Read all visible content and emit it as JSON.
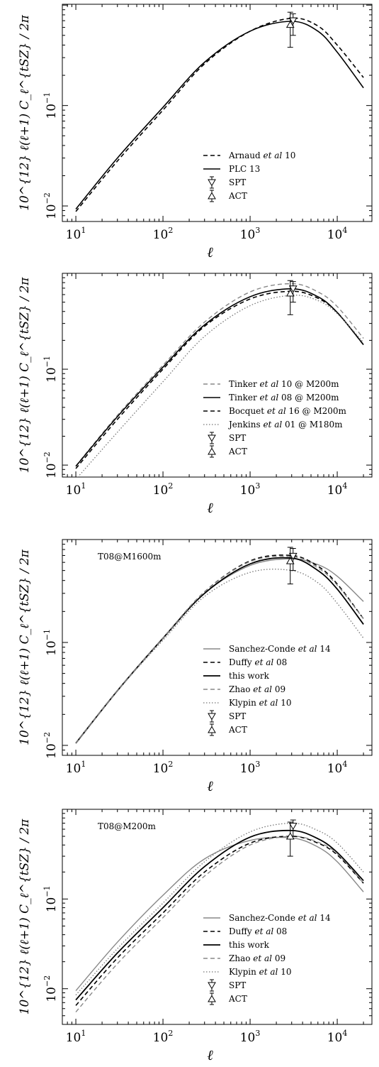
{
  "figure": {
    "ylabel": "10^{12} ℓ(ℓ+1) C_ℓ^{tSZ} / 2π",
    "xlabel": "ℓ"
  },
  "styles": {
    "arnaud": {
      "color": "#000000",
      "dash": "6,4",
      "width": 1.6
    },
    "plc": {
      "color": "#000000",
      "dash": "",
      "width": 1.6
    },
    "tinker10": {
      "color": "#888888",
      "dash": "6,4",
      "width": 1.4
    },
    "tinker08": {
      "color": "#000000",
      "dash": "",
      "width": 1.6
    },
    "bocquet": {
      "color": "#000000",
      "dash": "6,4",
      "width": 1.6
    },
    "jenkins": {
      "color": "#777777",
      "dash": "1.5,2.5",
      "width": 1.3
    },
    "sanchez": {
      "color": "#888888",
      "dash": "",
      "width": 1.4
    },
    "duffy": {
      "color": "#000000",
      "dash": "6,4",
      "width": 1.6
    },
    "thiswork": {
      "color": "#000000",
      "dash": "",
      "width": 1.8
    },
    "zhao": {
      "color": "#888888",
      "dash": "6,4",
      "width": 1.4
    },
    "klypin": {
      "color": "#777777",
      "dash": "1.5,2.5",
      "width": 1.3
    }
  },
  "chart_data": [
    {
      "type": "line",
      "xscale": "log",
      "yscale": "log",
      "xlim": [
        7,
        25000
      ],
      "ylim": [
        0.007,
        1.02
      ],
      "xticks": [
        10,
        100,
        1000,
        10000
      ],
      "yticks": [
        0.01,
        0.1
      ],
      "legend_position": "lower-right",
      "annotation": "",
      "series": [
        {
          "name": "Arnaud et al 10",
          "style": "arnaud",
          "x": [
            10,
            30,
            100,
            300,
            1000,
            3000,
            6000,
            10000,
            20000
          ],
          "y": [
            0.0088,
            0.028,
            0.09,
            0.26,
            0.55,
            0.74,
            0.62,
            0.4,
            0.19
          ]
        },
        {
          "name": "PLC 13",
          "style": "plc",
          "x": [
            10,
            30,
            100,
            300,
            1000,
            3000,
            6000,
            10000,
            20000
          ],
          "y": [
            0.0093,
            0.03,
            0.096,
            0.27,
            0.55,
            0.69,
            0.55,
            0.34,
            0.15
          ]
        }
      ],
      "points": [
        {
          "name": "SPT",
          "marker": "triangle-down",
          "x": 3000,
          "y": 0.7,
          "err_low": 0.5,
          "err_high": 0.82
        },
        {
          "name": "ACT",
          "marker": "triangle-up",
          "x": 3000,
          "y": 0.64,
          "err_low": 0.38,
          "err_high": 0.85
        }
      ]
    },
    {
      "type": "line",
      "xscale": "log",
      "yscale": "log",
      "xlim": [
        7,
        25000
      ],
      "ylim": [
        0.0075,
        1.0
      ],
      "xticks": [
        10,
        100,
        1000,
        10000
      ],
      "yticks": [
        0.01,
        0.1
      ],
      "legend_position": "lower-right",
      "annotation": "",
      "series": [
        {
          "name": "Tinker et al 10 @ M200m",
          "style": "tinker10",
          "x": [
            10,
            30,
            100,
            300,
            1000,
            3000,
            6000,
            10000,
            20000
          ],
          "y": [
            0.0098,
            0.033,
            0.11,
            0.31,
            0.64,
            0.78,
            0.64,
            0.45,
            0.21
          ]
        },
        {
          "name": "Tinker et al 08 @ M200m",
          "style": "tinker08",
          "x": [
            10,
            30,
            100,
            300,
            1000,
            3000,
            6000,
            10000,
            20000
          ],
          "y": [
            0.0097,
            0.032,
            0.105,
            0.29,
            0.57,
            0.69,
            0.57,
            0.39,
            0.18
          ]
        },
        {
          "name": "Bocquet et al 16 @ M200m",
          "style": "bocquet",
          "x": [
            10,
            30,
            100,
            300,
            1000,
            3000,
            6000,
            10000,
            20000
          ],
          "y": [
            0.0092,
            0.03,
            0.1,
            0.28,
            0.54,
            0.65,
            0.55,
            0.39,
            0.18
          ]
        },
        {
          "name": "Jenkins et al 01 @ M180m",
          "style": "jenkins",
          "x": [
            10,
            30,
            100,
            300,
            1000,
            3000,
            6000,
            10000,
            20000
          ],
          "y": [
            0.0071,
            0.022,
            0.074,
            0.22,
            0.46,
            0.59,
            0.52,
            0.38,
            0.19
          ]
        }
      ],
      "points": [
        {
          "name": "SPT",
          "marker": "triangle-down",
          "x": 3000,
          "y": 0.69,
          "err_low": 0.5,
          "err_high": 0.82
        },
        {
          "name": "ACT",
          "marker": "triangle-up",
          "x": 3000,
          "y": 0.62,
          "err_low": 0.37,
          "err_high": 0.84
        }
      ]
    },
    {
      "type": "line",
      "xscale": "log",
      "yscale": "log",
      "xlim": [
        7,
        25000
      ],
      "ylim": [
        0.008,
        1.0
      ],
      "xticks": [
        10,
        100,
        1000,
        10000
      ],
      "yticks": [
        0.01,
        0.1
      ],
      "legend_position": "lower-right",
      "annotation": "T08@M1600m",
      "series": [
        {
          "name": "Sanchez-Conde et al 14",
          "style": "sanchez",
          "x": [
            10,
            30,
            100,
            300,
            1000,
            3000,
            6000,
            10000,
            20000
          ],
          "y": [
            0.0105,
            0.034,
            0.11,
            0.3,
            0.56,
            0.65,
            0.57,
            0.44,
            0.25
          ]
        },
        {
          "name": "Duffy et al 08",
          "style": "duffy",
          "x": [
            10,
            30,
            100,
            300,
            1000,
            3000,
            6000,
            10000,
            20000
          ],
          "y": [
            0.0105,
            0.034,
            0.11,
            0.31,
            0.62,
            0.7,
            0.55,
            0.37,
            0.17
          ]
        },
        {
          "name": "this work",
          "style": "thiswork",
          "x": [
            10,
            30,
            100,
            300,
            1000,
            3000,
            6000,
            10000,
            20000
          ],
          "y": [
            0.0105,
            0.034,
            0.11,
            0.3,
            0.58,
            0.66,
            0.5,
            0.33,
            0.15
          ]
        },
        {
          "name": "Zhao et al 09",
          "style": "zhao",
          "x": [
            10,
            30,
            100,
            300,
            1000,
            3000,
            6000,
            10000,
            20000
          ],
          "y": [
            0.0105,
            0.034,
            0.11,
            0.31,
            0.61,
            0.68,
            0.53,
            0.36,
            0.17
          ]
        },
        {
          "name": "Klypin et al 10",
          "style": "klypin",
          "x": [
            10,
            30,
            100,
            300,
            1000,
            3000,
            6000,
            10000,
            20000
          ],
          "y": [
            0.0105,
            0.034,
            0.105,
            0.28,
            0.48,
            0.5,
            0.38,
            0.24,
            0.11
          ]
        }
      ],
      "points": [
        {
          "name": "SPT",
          "marker": "triangle-down",
          "x": 3000,
          "y": 0.69,
          "err_low": 0.5,
          "err_high": 0.82
        },
        {
          "name": "ACT",
          "marker": "triangle-up",
          "x": 3000,
          "y": 0.62,
          "err_low": 0.37,
          "err_high": 0.84
        }
      ]
    },
    {
      "type": "line",
      "xscale": "log",
      "yscale": "log",
      "xlim": [
        7,
        25000
      ],
      "ylim": [
        0.004,
        1.0
      ],
      "xticks": [
        10,
        100,
        1000,
        10000
      ],
      "yticks": [
        0.01,
        0.1
      ],
      "legend_position": "lower-right",
      "annotation": "T08@M200m",
      "series": [
        {
          "name": "Sanchez-Conde et al 14",
          "style": "sanchez",
          "x": [
            10,
            30,
            100,
            300,
            1000,
            3000,
            6000,
            10000,
            20000
          ],
          "y": [
            0.0095,
            0.033,
            0.11,
            0.28,
            0.45,
            0.48,
            0.38,
            0.26,
            0.12
          ]
        },
        {
          "name": "Duffy et al 08",
          "style": "duffy",
          "x": [
            10,
            30,
            100,
            300,
            1000,
            3000,
            6000,
            10000,
            20000
          ],
          "y": [
            0.0065,
            0.022,
            0.07,
            0.2,
            0.42,
            0.5,
            0.42,
            0.31,
            0.15
          ]
        },
        {
          "name": "this work",
          "style": "thiswork",
          "x": [
            10,
            30,
            100,
            300,
            1000,
            3000,
            6000,
            10000,
            20000
          ],
          "y": [
            0.0075,
            0.025,
            0.08,
            0.23,
            0.49,
            0.58,
            0.47,
            0.33,
            0.16
          ]
        },
        {
          "name": "Zhao et al 09",
          "style": "zhao",
          "x": [
            10,
            30,
            100,
            300,
            1000,
            3000,
            6000,
            10000,
            20000
          ],
          "y": [
            0.0055,
            0.019,
            0.062,
            0.18,
            0.4,
            0.5,
            0.43,
            0.32,
            0.15
          ]
        },
        {
          "name": "Klypin et al 10",
          "style": "klypin",
          "x": [
            10,
            30,
            100,
            300,
            1000,
            3000,
            6000,
            10000,
            20000
          ],
          "y": [
            0.0085,
            0.028,
            0.09,
            0.26,
            0.56,
            0.7,
            0.58,
            0.42,
            0.2
          ]
        }
      ],
      "points": [
        {
          "name": "SPT",
          "marker": "triangle-down",
          "x": 3000,
          "y": 0.65,
          "err_low": 0.5,
          "err_high": 0.76
        },
        {
          "name": "ACT",
          "marker": "triangle-up",
          "x": 3000,
          "y": 0.5,
          "err_low": 0.3,
          "err_high": 0.72
        }
      ]
    }
  ]
}
